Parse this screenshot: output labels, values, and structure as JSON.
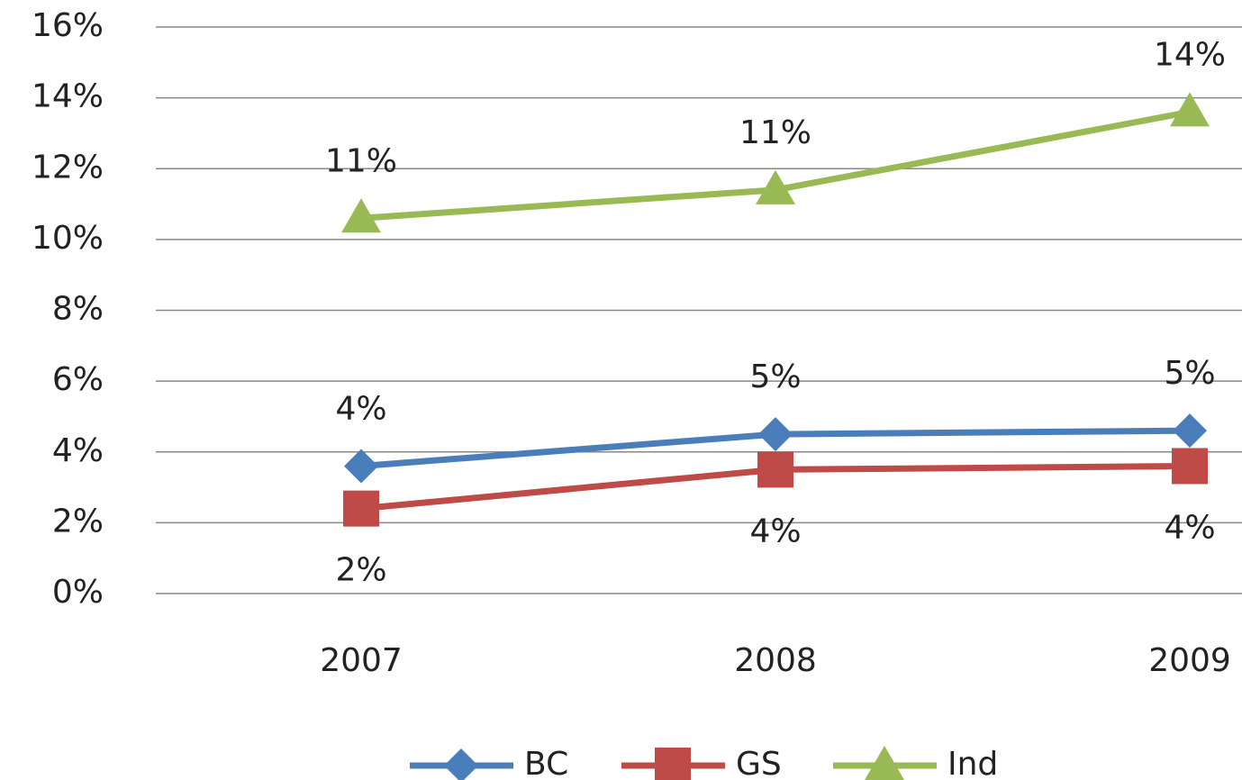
{
  "chart_data": {
    "type": "line",
    "categories": [
      "2007",
      "2008",
      "2009"
    ],
    "series": [
      {
        "name": "BC",
        "color": "#4a7ebb",
        "marker": "diamond",
        "values": [
          3.6,
          4.5,
          4.6
        ],
        "value_labels": [
          "4%",
          "5%",
          "5%"
        ]
      },
      {
        "name": "GS",
        "color": "#be4b48",
        "marker": "square",
        "values": [
          2.4,
          3.5,
          3.6
        ],
        "value_labels": [
          "2%",
          "4%",
          "4%"
        ]
      },
      {
        "name": "Ind",
        "color": "#98b954",
        "marker": "triangle",
        "values": [
          10.6,
          11.4,
          13.6
        ],
        "value_labels": [
          "11%",
          "11%",
          "14%"
        ]
      }
    ],
    "ylim": [
      0,
      16
    ],
    "yticks": [
      {
        "value": 0,
        "label": "0%"
      },
      {
        "value": 2,
        "label": "2%"
      },
      {
        "value": 4,
        "label": "4%"
      },
      {
        "value": 6,
        "label": "6%"
      },
      {
        "value": 8,
        "label": "8%"
      },
      {
        "value": 10,
        "label": "10%"
      },
      {
        "value": 12,
        "label": "12%"
      },
      {
        "value": 14,
        "label": "14%"
      },
      {
        "value": 16,
        "label": "16%"
      }
    ],
    "grid": true,
    "legend": "bottom"
  }
}
